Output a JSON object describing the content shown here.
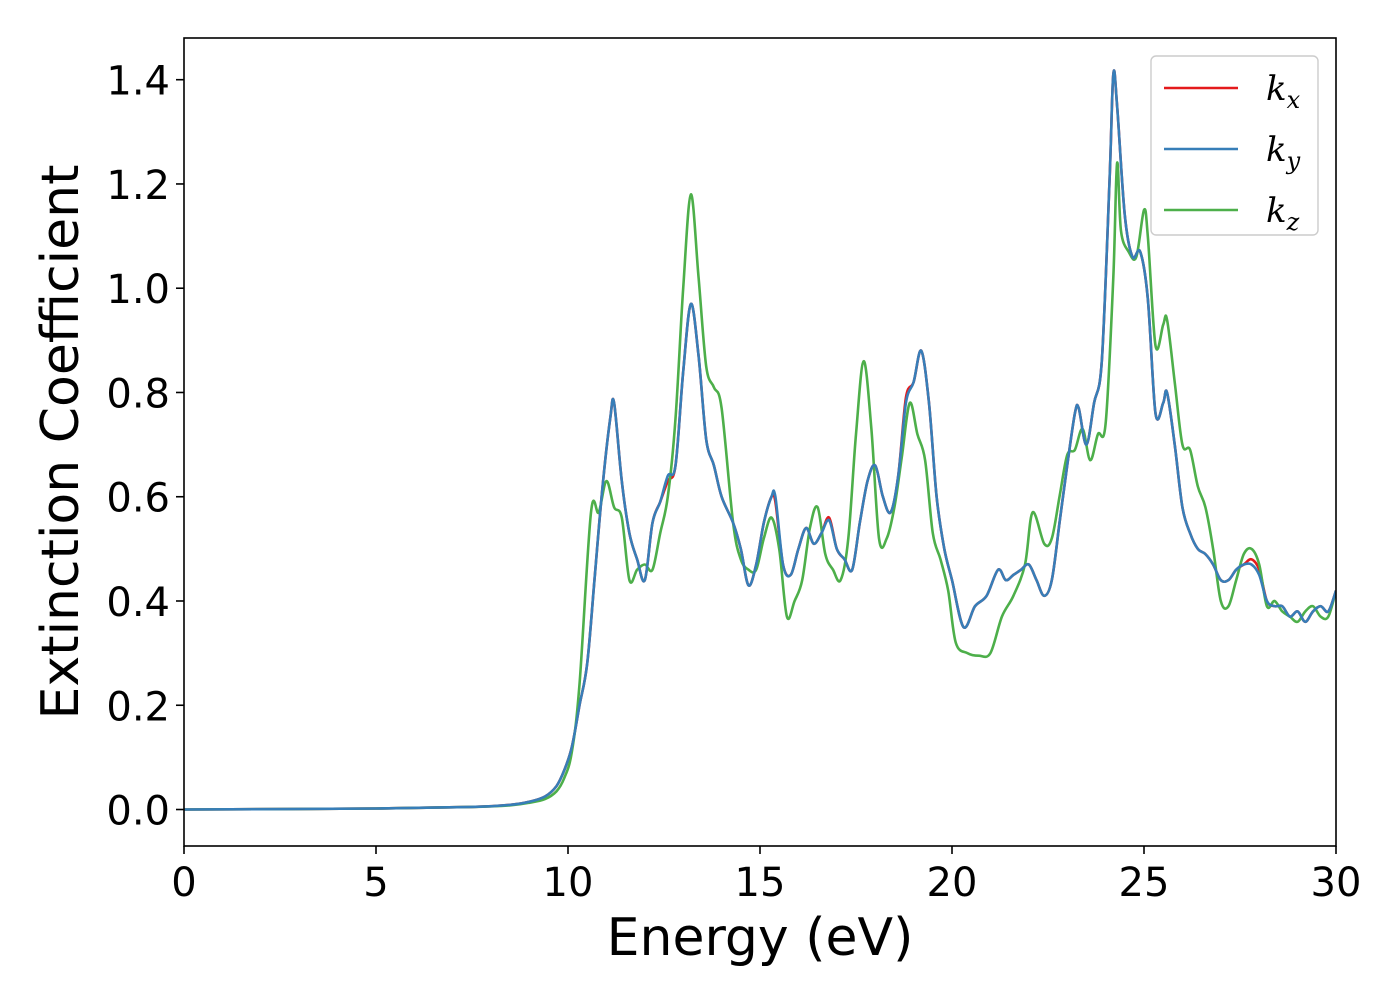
{
  "chart_data": {
    "type": "line",
    "xlabel": "Energy (eV)",
    "ylabel": "Extinction Coefficient",
    "xlim": [
      0,
      30
    ],
    "ylim": [
      -0.07,
      1.48
    ],
    "xticks": [
      "0",
      "5",
      "10",
      "15",
      "20",
      "25",
      "30"
    ],
    "yticks": [
      "0.0",
      "0.2",
      "0.4",
      "0.6",
      "0.8",
      "1.0",
      "1.2",
      "1.4"
    ],
    "grid": false,
    "legend_position": "top-right",
    "series": [
      {
        "name": "k_x",
        "legend_main": "k",
        "legend_sub": "x",
        "color": "#e41a1c",
        "x": [
          0,
          5,
          7.5,
          8.5,
          9.0,
          9.4,
          9.7,
          9.9,
          10.1,
          10.3,
          10.5,
          10.7,
          10.9,
          11.1,
          11.2,
          11.4,
          11.6,
          11.8,
          12.0,
          12.2,
          12.4,
          12.6,
          12.8,
          13.0,
          13.2,
          13.4,
          13.6,
          13.8,
          14.0,
          14.3,
          14.5,
          14.7,
          14.9,
          15.1,
          15.3,
          15.4,
          15.6,
          15.8,
          16.0,
          16.2,
          16.4,
          16.6,
          16.8,
          17.0,
          17.2,
          17.4,
          17.6,
          17.8,
          18.0,
          18.2,
          18.4,
          18.6,
          18.8,
          19.0,
          19.2,
          19.4,
          19.6,
          19.8,
          20.0,
          20.3,
          20.6,
          20.9,
          21.2,
          21.4,
          21.6,
          21.8,
          22.0,
          22.2,
          22.4,
          22.6,
          22.8,
          23.0,
          23.2,
          23.3,
          23.5,
          23.7,
          23.9,
          24.1,
          24.2,
          24.3,
          24.5,
          24.7,
          24.9,
          25.1,
          25.3,
          25.5,
          25.6,
          25.8,
          26.0,
          26.2,
          26.4,
          26.6,
          26.8,
          27.0,
          27.2,
          27.4,
          27.6,
          27.8,
          28.0,
          28.2,
          28.4,
          28.6,
          28.8,
          29.0,
          29.2,
          29.4,
          29.6,
          29.8,
          30.0
        ],
        "y": [
          0.0,
          0.002,
          0.005,
          0.009,
          0.015,
          0.025,
          0.045,
          0.075,
          0.12,
          0.2,
          0.28,
          0.45,
          0.62,
          0.75,
          0.78,
          0.63,
          0.53,
          0.48,
          0.44,
          0.55,
          0.59,
          0.63,
          0.66,
          0.84,
          0.97,
          0.87,
          0.71,
          0.66,
          0.6,
          0.55,
          0.5,
          0.43,
          0.47,
          0.55,
          0.6,
          0.59,
          0.47,
          0.45,
          0.5,
          0.54,
          0.51,
          0.53,
          0.56,
          0.5,
          0.48,
          0.46,
          0.55,
          0.63,
          0.66,
          0.6,
          0.57,
          0.64,
          0.79,
          0.82,
          0.88,
          0.78,
          0.6,
          0.5,
          0.44,
          0.35,
          0.39,
          0.41,
          0.46,
          0.44,
          0.45,
          0.46,
          0.47,
          0.44,
          0.41,
          0.44,
          0.55,
          0.66,
          0.76,
          0.77,
          0.7,
          0.78,
          0.86,
          1.2,
          1.41,
          1.35,
          1.14,
          1.06,
          1.07,
          0.98,
          0.76,
          0.78,
          0.8,
          0.7,
          0.58,
          0.53,
          0.5,
          0.49,
          0.47,
          0.44,
          0.44,
          0.46,
          0.47,
          0.48,
          0.46,
          0.4,
          0.39,
          0.39,
          0.37,
          0.38,
          0.36,
          0.38,
          0.39,
          0.38,
          0.42
        ]
      },
      {
        "name": "k_y",
        "legend_main": "k",
        "legend_sub": "y",
        "color": "#377eb8",
        "x": [
          0,
          5,
          7.5,
          8.5,
          9.0,
          9.4,
          9.7,
          9.9,
          10.1,
          10.3,
          10.5,
          10.7,
          10.9,
          11.1,
          11.2,
          11.4,
          11.6,
          11.8,
          12.0,
          12.2,
          12.4,
          12.6,
          12.8,
          13.0,
          13.2,
          13.4,
          13.6,
          13.8,
          14.0,
          14.3,
          14.5,
          14.7,
          14.9,
          15.1,
          15.3,
          15.4,
          15.6,
          15.8,
          16.0,
          16.2,
          16.4,
          16.6,
          16.8,
          17.0,
          17.2,
          17.4,
          17.6,
          17.8,
          18.0,
          18.2,
          18.4,
          18.6,
          18.8,
          19.0,
          19.2,
          19.4,
          19.6,
          19.8,
          20.0,
          20.3,
          20.6,
          20.9,
          21.2,
          21.4,
          21.6,
          21.8,
          22.0,
          22.2,
          22.4,
          22.6,
          22.8,
          23.0,
          23.2,
          23.3,
          23.5,
          23.7,
          23.9,
          24.1,
          24.2,
          24.3,
          24.5,
          24.7,
          24.9,
          25.1,
          25.3,
          25.5,
          25.6,
          25.8,
          26.0,
          26.2,
          26.4,
          26.6,
          26.8,
          27.0,
          27.2,
          27.4,
          27.6,
          27.8,
          28.0,
          28.2,
          28.4,
          28.6,
          28.8,
          29.0,
          29.2,
          29.4,
          29.6,
          29.8,
          30.0
        ],
        "y": [
          0.0,
          0.002,
          0.005,
          0.009,
          0.015,
          0.025,
          0.045,
          0.075,
          0.12,
          0.2,
          0.28,
          0.45,
          0.62,
          0.75,
          0.78,
          0.63,
          0.53,
          0.48,
          0.44,
          0.55,
          0.59,
          0.64,
          0.66,
          0.84,
          0.97,
          0.87,
          0.71,
          0.66,
          0.6,
          0.55,
          0.5,
          0.43,
          0.47,
          0.55,
          0.6,
          0.6,
          0.47,
          0.45,
          0.5,
          0.54,
          0.51,
          0.53,
          0.555,
          0.5,
          0.48,
          0.46,
          0.55,
          0.63,
          0.66,
          0.6,
          0.57,
          0.64,
          0.78,
          0.82,
          0.88,
          0.78,
          0.6,
          0.5,
          0.44,
          0.35,
          0.39,
          0.41,
          0.46,
          0.44,
          0.45,
          0.46,
          0.47,
          0.44,
          0.41,
          0.44,
          0.55,
          0.66,
          0.76,
          0.77,
          0.7,
          0.78,
          0.86,
          1.2,
          1.41,
          1.35,
          1.14,
          1.06,
          1.07,
          0.98,
          0.76,
          0.78,
          0.8,
          0.7,
          0.58,
          0.53,
          0.5,
          0.49,
          0.47,
          0.44,
          0.44,
          0.46,
          0.47,
          0.47,
          0.45,
          0.4,
          0.39,
          0.39,
          0.37,
          0.38,
          0.36,
          0.38,
          0.39,
          0.38,
          0.42
        ]
      },
      {
        "name": "k_z",
        "legend_main": "k",
        "legend_sub": "z",
        "color": "#4daf4a",
        "x": [
          0,
          5,
          7.5,
          8.5,
          9.0,
          9.4,
          9.7,
          9.9,
          10.1,
          10.3,
          10.6,
          10.8,
          11.0,
          11.2,
          11.4,
          11.6,
          11.8,
          12.0,
          12.2,
          12.4,
          12.6,
          12.8,
          13.0,
          13.2,
          13.4,
          13.6,
          13.8,
          14.0,
          14.3,
          14.5,
          14.7,
          14.9,
          15.1,
          15.3,
          15.5,
          15.7,
          15.9,
          16.1,
          16.3,
          16.5,
          16.7,
          16.9,
          17.1,
          17.3,
          17.5,
          17.7,
          17.9,
          18.1,
          18.3,
          18.5,
          18.7,
          18.9,
          19.1,
          19.3,
          19.5,
          19.7,
          19.9,
          20.1,
          20.4,
          20.7,
          21.0,
          21.3,
          21.6,
          21.9,
          22.1,
          22.4,
          22.6,
          22.8,
          23.0,
          23.2,
          23.4,
          23.6,
          23.8,
          24.0,
          24.2,
          24.3,
          24.4,
          24.6,
          24.8,
          25.0,
          25.1,
          25.3,
          25.5,
          25.6,
          25.8,
          26.0,
          26.2,
          26.4,
          26.6,
          26.8,
          27.0,
          27.2,
          27.4,
          27.6,
          27.8,
          28.0,
          28.2,
          28.4,
          28.6,
          28.8,
          29.0,
          29.2,
          29.4,
          29.6,
          29.8,
          30.0
        ],
        "y": [
          0.0,
          0.002,
          0.005,
          0.008,
          0.013,
          0.02,
          0.035,
          0.06,
          0.11,
          0.24,
          0.57,
          0.57,
          0.63,
          0.58,
          0.56,
          0.44,
          0.46,
          0.47,
          0.46,
          0.53,
          0.6,
          0.75,
          1.0,
          1.18,
          1.02,
          0.85,
          0.81,
          0.77,
          0.55,
          0.48,
          0.46,
          0.46,
          0.52,
          0.56,
          0.5,
          0.37,
          0.4,
          0.44,
          0.54,
          0.58,
          0.49,
          0.46,
          0.44,
          0.52,
          0.72,
          0.86,
          0.73,
          0.52,
          0.52,
          0.58,
          0.68,
          0.78,
          0.72,
          0.67,
          0.53,
          0.48,
          0.42,
          0.32,
          0.3,
          0.295,
          0.3,
          0.37,
          0.41,
          0.47,
          0.57,
          0.51,
          0.52,
          0.6,
          0.68,
          0.69,
          0.73,
          0.67,
          0.72,
          0.74,
          1.02,
          1.24,
          1.11,
          1.07,
          1.06,
          1.15,
          1.1,
          0.89,
          0.93,
          0.94,
          0.82,
          0.7,
          0.69,
          0.62,
          0.58,
          0.5,
          0.4,
          0.39,
          0.44,
          0.49,
          0.5,
          0.47,
          0.39,
          0.4,
          0.38,
          0.37,
          0.36,
          0.38,
          0.39,
          0.37,
          0.37,
          0.42
        ]
      }
    ]
  }
}
